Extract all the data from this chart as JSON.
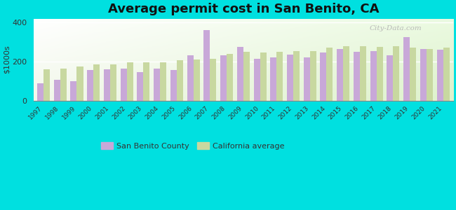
{
  "years": [
    1997,
    1998,
    1999,
    2000,
    2001,
    2002,
    2003,
    2004,
    2005,
    2006,
    2007,
    2008,
    2009,
    2010,
    2011,
    2012,
    2013,
    2014,
    2015,
    2016,
    2017,
    2018,
    2019,
    2020,
    2021
  ],
  "san_benito": [
    90,
    105,
    100,
    155,
    160,
    165,
    145,
    165,
    155,
    230,
    360,
    230,
    275,
    215,
    220,
    235,
    220,
    245,
    265,
    250,
    255,
    230,
    325,
    265,
    260
  ],
  "california": [
    160,
    165,
    175,
    185,
    185,
    195,
    195,
    195,
    205,
    210,
    215,
    240,
    250,
    245,
    250,
    255,
    255,
    270,
    280,
    280,
    275,
    280,
    270,
    265,
    270
  ],
  "title": "Average permit cost in San Benito, CA",
  "ylabel": "$1000s",
  "ylim": [
    0,
    420
  ],
  "yticks": [
    0,
    200,
    400
  ],
  "bar_color_benito": "#c8a8d8",
  "bar_color_ca": "#c8d8a0",
  "background_color": "#00e0e0",
  "legend_benito": "San Benito County",
  "legend_ca": "California average",
  "bar_width": 0.38,
  "title_fontsize": 13,
  "watermark": "City-Data.com"
}
